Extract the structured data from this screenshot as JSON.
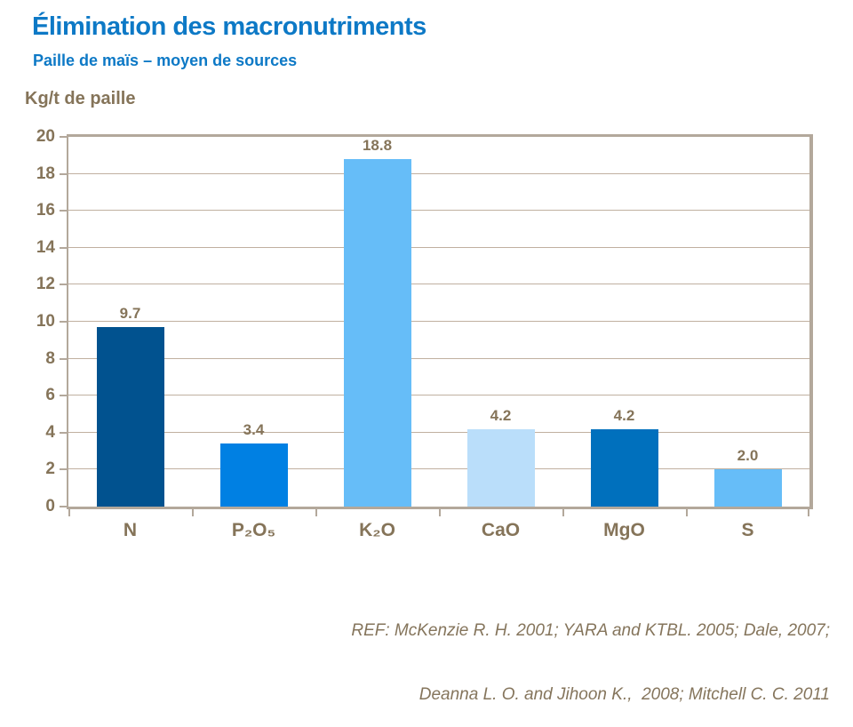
{
  "slide": {
    "title": "Élimination des macronutriments",
    "subtitle": "Paille  de maïs – moyen de sources",
    "axis_title": "Kg/t de paille",
    "reference_line1": "REF: McKenzie R. H. 2001; YARA and KTBL. 2005; Dale, 2007;",
    "reference_line2": "Deanna L. O. and Jihoon K.,  2008; Mitchell C. C. 2011"
  },
  "colors": {
    "title_blue": "#0d79c6",
    "text_brown": "#857459",
    "axis_border": "#b3a89b",
    "gridline": "#c0b0a0"
  },
  "chart_data": {
    "type": "bar",
    "title": "Élimination des macronutriments — Paille de maïs, moyen de sources",
    "ylabel": "Kg/t de paille",
    "xlabel": "",
    "categories": [
      "N",
      "P₂O₅",
      "K₂O",
      "CaO",
      "MgO",
      "S"
    ],
    "values": [
      9.7,
      3.4,
      18.8,
      4.2,
      4.2,
      2.0
    ],
    "labels": [
      "9.7",
      "3.4",
      "18.8",
      "4.2",
      "4.2",
      "2.0"
    ],
    "bar_colors": [
      "#01528f",
      "#0080e3",
      "#66bdf8",
      "#badefa",
      "#0070bd",
      "#66bdf8"
    ],
    "ylim": [
      0,
      20
    ],
    "ytick_step": 2,
    "grid": true,
    "legend": "none"
  }
}
